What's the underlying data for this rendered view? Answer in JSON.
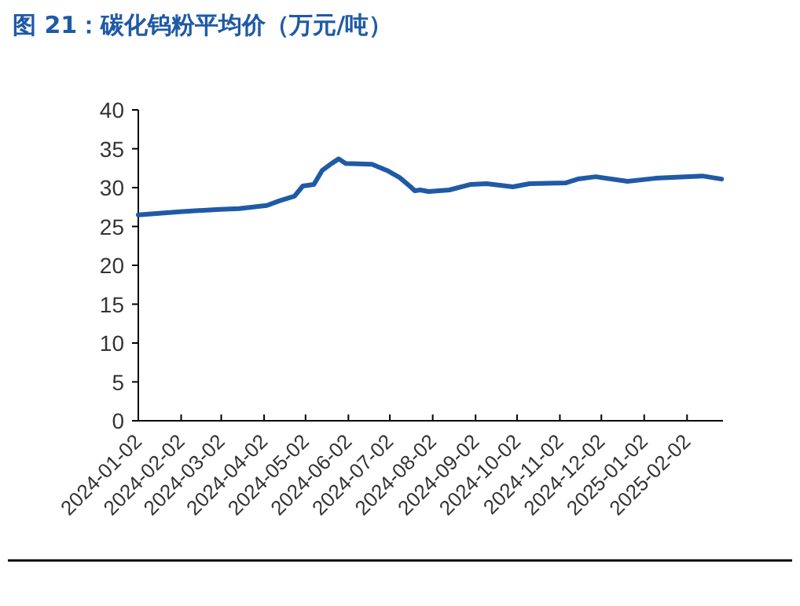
{
  "chart_data": {
    "type": "line",
    "title": "图 21：碳化钨粉平均价（万元/吨）",
    "x": [
      "2024-01-02",
      "2024-02-01",
      "2024-03-01",
      "2024-03-15",
      "2024-04-04",
      "2024-04-13",
      "2024-04-24",
      "2024-04-30",
      "2024-05-08",
      "2024-05-14",
      "2024-05-20",
      "2024-05-26",
      "2024-05-31",
      "2024-06-19",
      "2024-06-30",
      "2024-07-09",
      "2024-07-17",
      "2024-07-20",
      "2024-07-24",
      "2024-07-30",
      "2024-08-14",
      "2024-08-29",
      "2024-09-10",
      "2024-09-29",
      "2024-10-11",
      "2024-11-06",
      "2024-11-15",
      "2024-11-28",
      "2024-12-21",
      "2025-01-10",
      "2025-02-13",
      "2025-02-27"
    ],
    "series": [
      {
        "color": "#1f5aa6",
        "values": [
          26.5,
          26.9,
          27.2,
          27.3,
          27.7,
          28.3,
          28.9,
          30.2,
          30.4,
          32.2,
          33.0,
          33.7,
          33.1,
          33.0,
          32.2,
          31.3,
          30.1,
          29.6,
          29.7,
          29.5,
          29.7,
          30.4,
          30.5,
          30.1,
          30.5,
          30.6,
          31.1,
          31.4,
          30.8,
          31.2,
          31.5,
          31.1
        ]
      }
    ],
    "xlim": [
      "2024-01-02",
      "2025-02-28"
    ],
    "xticks": [
      "2024-01-02",
      "2024-02-02",
      "2024-03-02",
      "2024-04-02",
      "2024-05-02",
      "2024-06-02",
      "2024-07-02",
      "2024-08-02",
      "2024-09-02",
      "2024-10-02",
      "2024-11-02",
      "2024-12-02",
      "2025-01-02",
      "2025-02-02"
    ],
    "ylim": [
      0,
      40
    ],
    "yticks": [
      0,
      5,
      10,
      15,
      20,
      25,
      30,
      35,
      40
    ],
    "grid": false,
    "marker": "none",
    "line_style": "solid"
  }
}
